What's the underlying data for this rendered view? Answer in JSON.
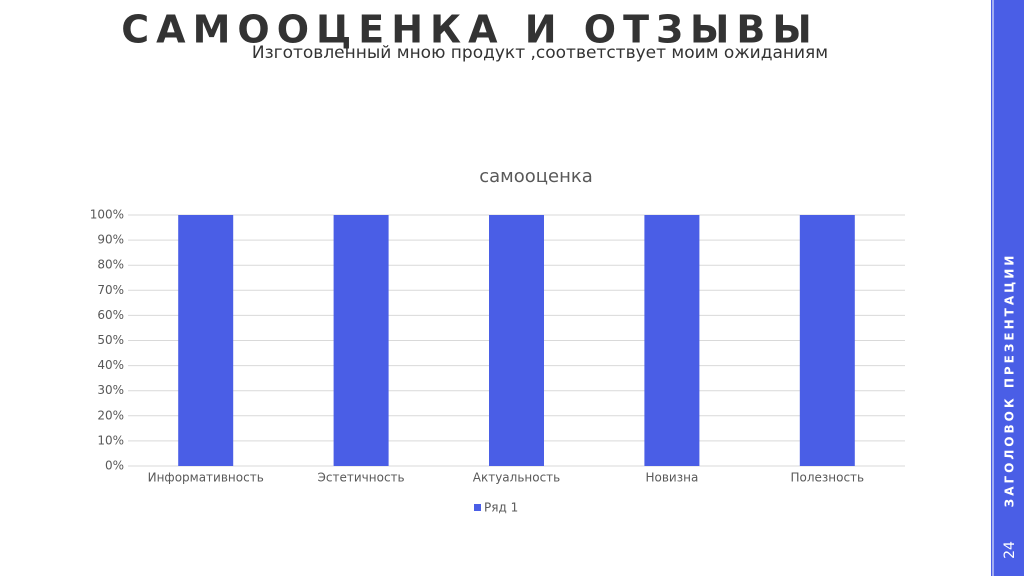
{
  "slide": {
    "title": "САМООЦЕНКА И ОТЗЫВЫ",
    "subtitle": "Изготовленный мною продукт ,соответствует моим ожиданиям",
    "side_title": "ЗАГОЛОВОК ПРЕЗЕНТАЦИИ",
    "page_number": "24"
  },
  "chart_data": {
    "type": "bar",
    "title": "самооценка",
    "categories": [
      "Информативность",
      "Эстетичность",
      "Актуальность",
      "Новизна",
      "Полезность"
    ],
    "series": [
      {
        "name": "Ряд 1",
        "color": "#4a5ee6",
        "values": [
          100,
          100,
          100,
          100,
          100
        ]
      }
    ],
    "ylim": [
      0,
      100
    ],
    "yticks": [
      {
        "value": 0,
        "label": "0%"
      },
      {
        "value": 10,
        "label": "10%"
      },
      {
        "value": 20,
        "label": "20%"
      },
      {
        "value": 30,
        "label": "30%"
      },
      {
        "value": 40,
        "label": "40%"
      },
      {
        "value": 50,
        "label": "50%"
      },
      {
        "value": 60,
        "label": "60%"
      },
      {
        "value": 70,
        "label": "70%"
      },
      {
        "value": 80,
        "label": "80%"
      },
      {
        "value": 90,
        "label": "90%"
      },
      {
        "value": 100,
        "label": "100%"
      }
    ],
    "grid": true,
    "legend": "bottom"
  }
}
